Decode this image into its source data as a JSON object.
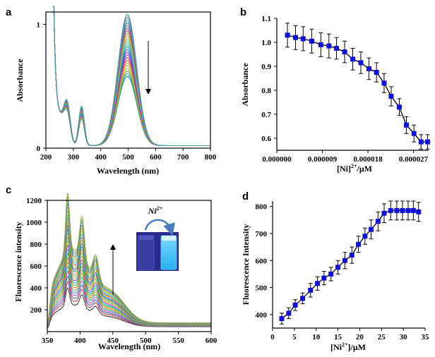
{
  "chart_data": [
    {
      "panel": "a",
      "type": "line",
      "xlabel": "Wavelength (nm)",
      "ylabel": "Absorbance",
      "xlim": [
        200,
        800
      ],
      "ylim": [
        0,
        1.1
      ],
      "x_ticks": [
        200,
        300,
        400,
        500,
        600,
        700,
        800
      ],
      "y_ticks": [
        0,
        1
      ],
      "grid": false,
      "trend_arrow": "down",
      "curve_count": 24,
      "peak_wavelength": 497,
      "peak_absorbance_range": [
        0.56,
        1.06
      ],
      "shoulder_wavelengths": [
        278,
        330
      ],
      "colors": [
        "#1a8f8f",
        "#2ab2a8",
        "#6ab04c",
        "#9fc43a",
        "#c8b83a",
        "#d89a3a",
        "#d9563a",
        "#d03a7a",
        "#9b3ad0",
        "#5a4ad8",
        "#3a6ad8",
        "#2a9ad8",
        "#2ac4c4",
        "#5ac48a",
        "#8ac45a",
        "#b4b43a",
        "#c48a3a",
        "#c45a5a",
        "#a04aa0",
        "#6a6aa0",
        "#3a8a8a",
        "#5aa0c4",
        "#7a7ab4",
        "#4a9a9a"
      ]
    },
    {
      "panel": "b",
      "type": "line",
      "xlabel": "[Ni]2+/μM",
      "ylabel": "Absorbance",
      "xlim": [
        0,
        3e-05
      ],
      "ylim": [
        0.55,
        1.1
      ],
      "x_tick_labels": [
        "0.000000",
        "0.000009",
        "0.000018",
        "0.000027"
      ],
      "x_tick_values": [
        0,
        9e-06,
        1.8e-05,
        2.7e-05
      ],
      "y_ticks": [
        0.6,
        0.7,
        0.8,
        0.9,
        1.0,
        1.1
      ],
      "y_tick_labels": [
        "0.6",
        "0.7",
        "0.8",
        "0.9",
        "1.0",
        "1.1"
      ],
      "x": [
        2.1e-06,
        3.7e-06,
        5.2e-06,
        6.9e-06,
        8.7e-06,
        1.03e-05,
        1.18e-05,
        1.34e-05,
        1.5e-05,
        1.66e-05,
        1.82e-05,
        1.97e-05,
        2.12e-05,
        2.26e-05,
        2.42e-05,
        2.56e-05,
        2.71e-05,
        2.85e-05,
        2.98e-05
      ],
      "y": [
        1.03,
        1.02,
        1.015,
        1.005,
        0.99,
        0.985,
        0.975,
        0.96,
        0.93,
        0.915,
        0.89,
        0.875,
        0.83,
        0.775,
        0.73,
        0.655,
        0.62,
        0.585,
        0.585
      ],
      "error": [
        0.05,
        0.05,
        0.05,
        0.05,
        0.05,
        0.05,
        0.045,
        0.045,
        0.045,
        0.045,
        0.045,
        0.04,
        0.04,
        0.04,
        0.035,
        0.035,
        0.035,
        0.03,
        0.03
      ],
      "grid": false,
      "color": "#1010d8"
    },
    {
      "panel": "c",
      "type": "line",
      "xlabel": "Wavelength (nm)",
      "ylabel": "Fluorescence intensity",
      "xlim": [
        350,
        600
      ],
      "ylim": [
        0,
        1200
      ],
      "x_ticks": [
        350,
        400,
        450,
        500,
        550,
        600
      ],
      "y_ticks": [
        200,
        400,
        600,
        800,
        1000,
        1200
      ],
      "grid": false,
      "trend_arrow": "up",
      "inset_label": "Ni²⁺",
      "curve_count": 24,
      "peak_wavelengths": [
        381,
        403,
        424
      ],
      "peak1_intensity_range": [
        340,
        1140
      ],
      "colors": [
        "#222222",
        "#d03030",
        "#3050d0",
        "#c050c0",
        "#30a0a0",
        "#a0a030",
        "#d08030",
        "#30c030",
        "#2a9ad8",
        "#9b3ad0",
        "#c8b83a",
        "#6ab04c",
        "#d89a3a",
        "#1a8f8f",
        "#5a4ad8",
        "#9fc43a",
        "#c45a5a",
        "#2ac4c4",
        "#8ac45a",
        "#b4b43a",
        "#6a6aa0",
        "#4a9a9a",
        "#7aa03a",
        "#a0a050"
      ]
    },
    {
      "panel": "d",
      "type": "line",
      "xlabel": "[Ni2+]/μM",
      "ylabel": "Fluorescence Intensity",
      "xlim": [
        0,
        35
      ],
      "ylim": [
        350,
        820
      ],
      "x_ticks": [
        0,
        5,
        10,
        15,
        20,
        25,
        30,
        35
      ],
      "y_ticks": [
        400,
        500,
        600,
        700,
        800
      ],
      "x": [
        2.1,
        3.7,
        5.2,
        6.9,
        8.7,
        10.3,
        11.8,
        13.4,
        15.0,
        16.6,
        18.2,
        19.7,
        21.2,
        22.6,
        24.2,
        25.6,
        27.1,
        28.5,
        29.8,
        31.1,
        32.3,
        33.5
      ],
      "y": [
        385,
        405,
        435,
        460,
        490,
        515,
        535,
        550,
        575,
        600,
        620,
        660,
        690,
        715,
        745,
        775,
        785,
        785,
        785,
        785,
        785,
        780
      ],
      "error": [
        20,
        20,
        20,
        20,
        25,
        25,
        25,
        25,
        25,
        30,
        30,
        30,
        30,
        35,
        35,
        35,
        35,
        35,
        35,
        35,
        35,
        35
      ],
      "grid": false,
      "color": "#1010d8"
    }
  ],
  "panels": {
    "a": {
      "letter": "a",
      "xlabel": "Wavelength (nm)",
      "ylabel": "Absorbance"
    },
    "b": {
      "letter": "b",
      "xlabel_main": "[Ni]",
      "xlabel_sup": "2+",
      "xlabel_tail": "/μM",
      "ylabel": "Absorbance"
    },
    "c": {
      "letter": "c",
      "xlabel": "Wavelength (nm)",
      "ylabel": "Fluorescence intensity",
      "inset_label": "Ni",
      "inset_sup": "2+"
    },
    "d": {
      "letter": "d",
      "xlabel_main": "[Ni",
      "xlabel_sup": "2+",
      "xlabel_tail": "]/μM",
      "ylabel": "Fluorescence Intensity"
    }
  }
}
